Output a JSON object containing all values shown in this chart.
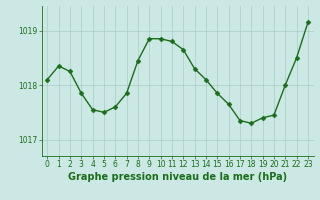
{
  "x": [
    0,
    1,
    2,
    3,
    4,
    5,
    6,
    7,
    8,
    9,
    10,
    11,
    12,
    13,
    14,
    15,
    16,
    17,
    18,
    19,
    20,
    21,
    22,
    23
  ],
  "y": [
    1018.1,
    1018.35,
    1018.25,
    1017.85,
    1017.55,
    1017.5,
    1017.6,
    1017.85,
    1018.45,
    1018.85,
    1018.85,
    1018.8,
    1018.65,
    1018.3,
    1018.1,
    1017.85,
    1017.65,
    1017.35,
    1017.3,
    1017.4,
    1017.45,
    1018.0,
    1018.5,
    1019.15
  ],
  "line_color": "#1a6e1a",
  "marker_color": "#1a6e1a",
  "bg_color": "#cce8e4",
  "grid_color": "#aaccc8",
  "axis_color": "#1a6e1a",
  "tick_color": "#1a6e1a",
  "label_color": "#1a6e1a",
  "xlabel": "Graphe pression niveau de la mer (hPa)",
  "ylim": [
    1016.7,
    1019.45
  ],
  "yticks": [
    1017,
    1018,
    1019
  ],
  "xticks": [
    0,
    1,
    2,
    3,
    4,
    5,
    6,
    7,
    8,
    9,
    10,
    11,
    12,
    13,
    14,
    15,
    16,
    17,
    18,
    19,
    20,
    21,
    22,
    23
  ],
  "font_size": 5.5,
  "xlabel_fontsize": 7,
  "line_width": 1.0,
  "marker_size": 2.5
}
